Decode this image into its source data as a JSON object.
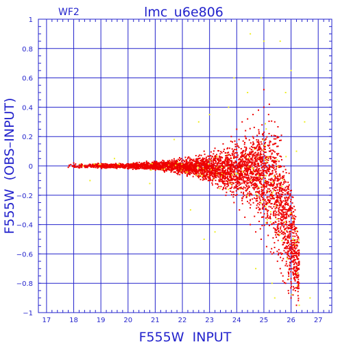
{
  "chart_data": {
    "type": "scatter",
    "title": "lmc_u6e806",
    "subtitle": "WF2",
    "xlabel": "F555W  INPUT",
    "ylabel": "F555W  (OBS–INPUT)",
    "xlim": [
      16.7,
      27.5
    ],
    "ylim": [
      -1,
      1
    ],
    "xticks": [
      17,
      18,
      19,
      20,
      21,
      22,
      23,
      24,
      25,
      26,
      27
    ],
    "yticks": [
      -1,
      -0.8,
      -0.6,
      -0.4,
      -0.2,
      0,
      0.2,
      0.4,
      0.6,
      0.8,
      1
    ],
    "xtick_labels": [
      "17",
      "18",
      "19",
      "20",
      "21",
      "22",
      "23",
      "24",
      "25",
      "26",
      "27"
    ],
    "ytick_labels": [
      "−1",
      "−0.8",
      "−0.6",
      "−0.4",
      "−0.2",
      "0",
      "0.2",
      "0.4",
      "0.6",
      "0.8",
      "1"
    ],
    "grid": true,
    "colors": {
      "axis": "#2222cc",
      "grid": "#2222cc",
      "red": "#ee0000",
      "yellow": "#eeee22"
    },
    "series": [
      {
        "color": "red",
        "points": [
          [
            17.8,
            -0.01
          ],
          [
            18.0,
            0.02
          ],
          [
            18.3,
            0.0
          ],
          [
            18.6,
            0.01
          ],
          [
            19.0,
            -0.01
          ],
          [
            19.4,
            0.01
          ],
          [
            19.8,
            0.0
          ],
          [
            20.2,
            0.02
          ],
          [
            20.6,
            -0.02
          ],
          [
            21.0,
            0.01
          ],
          [
            21.4,
            -0.03
          ],
          [
            21.8,
            0.03
          ],
          [
            22.0,
            -0.05
          ],
          [
            22.2,
            0.05
          ],
          [
            22.5,
            0.07
          ],
          [
            22.6,
            -0.08
          ],
          [
            22.8,
            0.1
          ],
          [
            23.0,
            -0.1
          ],
          [
            23.2,
            0.12
          ],
          [
            23.3,
            -0.15
          ],
          [
            23.5,
            0.15
          ],
          [
            23.6,
            -0.2
          ],
          [
            23.8,
            0.2
          ],
          [
            23.9,
            -0.25
          ],
          [
            24.0,
            0.25
          ],
          [
            24.1,
            -0.3
          ],
          [
            24.2,
            0.3
          ],
          [
            24.3,
            -0.35
          ],
          [
            24.4,
            0.32
          ],
          [
            24.5,
            -0.4
          ],
          [
            24.6,
            0.35
          ],
          [
            24.7,
            -0.45
          ],
          [
            24.8,
            0.38
          ],
          [
            24.9,
            -0.5
          ],
          [
            25.0,
            0.4
          ],
          [
            25.0,
            0.52
          ],
          [
            25.1,
            -0.55
          ],
          [
            25.2,
            0.42
          ],
          [
            25.3,
            -0.6
          ],
          [
            25.4,
            0.3
          ],
          [
            25.5,
            -0.65
          ],
          [
            25.5,
            0.2
          ],
          [
            25.6,
            -0.7
          ],
          [
            25.7,
            -0.75
          ],
          [
            25.8,
            -0.8
          ],
          [
            25.9,
            -0.85
          ],
          [
            26.0,
            -0.9
          ],
          [
            26.1,
            -0.7
          ],
          [
            26.2,
            -0.95
          ],
          [
            26.3,
            -0.6
          ],
          [
            24.5,
            0.0
          ],
          [
            24.8,
            -0.1
          ],
          [
            25.2,
            0.1
          ],
          [
            23.6,
            0.05
          ],
          [
            22.9,
            -0.02
          ]
        ]
      },
      {
        "color": "yellow",
        "points": [
          [
            18.6,
            -0.1
          ],
          [
            19.5,
            0.05
          ],
          [
            20.8,
            -0.12
          ],
          [
            21.7,
            0.18
          ],
          [
            22.3,
            -0.3
          ],
          [
            22.6,
            0.3
          ],
          [
            23.0,
            0.35
          ],
          [
            23.2,
            -0.45
          ],
          [
            23.7,
            0.4
          ],
          [
            24.1,
            -0.6
          ],
          [
            24.4,
            0.5
          ],
          [
            24.5,
            0.9
          ],
          [
            24.9,
            0.6
          ],
          [
            25.0,
            0.85
          ],
          [
            25.3,
            -0.8
          ],
          [
            25.6,
            0.85
          ],
          [
            25.8,
            0.5
          ],
          [
            26.0,
            0.65
          ],
          [
            26.2,
            0.1
          ],
          [
            26.3,
            -0.95
          ],
          [
            26.5,
            0.3
          ],
          [
            26.7,
            -0.9
          ],
          [
            24.7,
            -0.7
          ],
          [
            22.8,
            -0.5
          ],
          [
            25.4,
            -0.9
          ],
          [
            23.9,
            0.6
          ]
        ]
      }
    ],
    "band": {
      "note": "dense scatter cloud",
      "x": [
        17.8,
        18.5,
        19.5,
        20.5,
        21.5,
        22.5,
        23.5,
        24.5,
        25.2,
        25.6,
        25.9,
        26.3
      ],
      "upper": [
        0.02,
        0.02,
        0.02,
        0.03,
        0.05,
        0.08,
        0.15,
        0.3,
        0.45,
        0.3,
        0.1,
        -0.4
      ],
      "lower": [
        -0.02,
        -0.02,
        -0.02,
        -0.03,
        -0.05,
        -0.1,
        -0.2,
        -0.35,
        -0.6,
        -0.8,
        -0.95,
        -1.0
      ]
    }
  }
}
